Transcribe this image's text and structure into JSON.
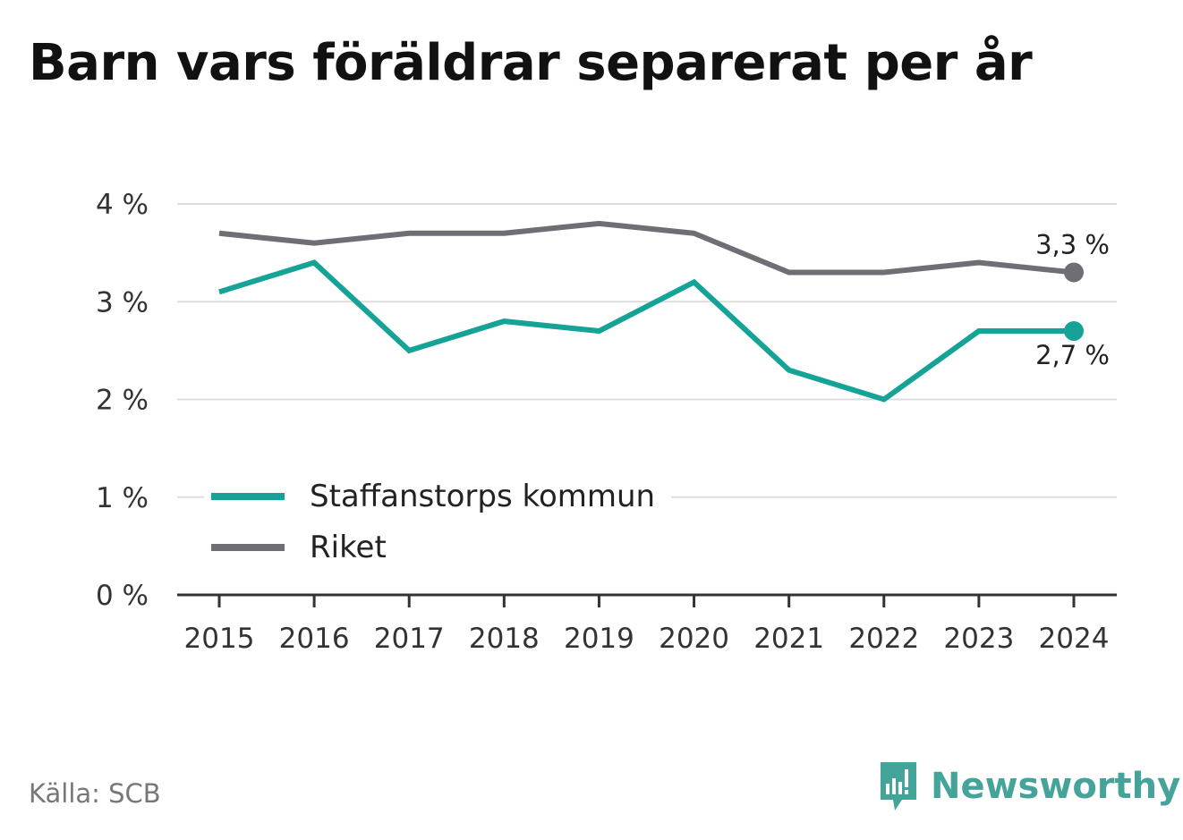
{
  "title": "Barn vars föräldrar separerat per år",
  "source": "Källa: SCB",
  "brand": {
    "name": "Newsworthy",
    "icon": "newsworthy-logo-icon",
    "color": "#45a49a"
  },
  "chart_data": {
    "type": "line",
    "title": "Barn vars föräldrar separerat per år",
    "x": [
      "2015",
      "2016",
      "2017",
      "2018",
      "2019",
      "2020",
      "2021",
      "2022",
      "2023",
      "2024"
    ],
    "yticks": [
      "0 %",
      "1 %",
      "2 %",
      "3 %",
      "4 %"
    ],
    "ylim": [
      0,
      4
    ],
    "grid": true,
    "legend_position": "bottom-left",
    "series": [
      {
        "name": "Staffanstorps kommun",
        "color": "#14a396",
        "values": [
          3.1,
          3.4,
          2.5,
          2.8,
          2.7,
          3.2,
          2.3,
          2.0,
          2.7,
          2.7
        ],
        "end_label": "2,7 %"
      },
      {
        "name": "Riket",
        "color": "#6e6e75",
        "values": [
          3.7,
          3.6,
          3.7,
          3.7,
          3.8,
          3.7,
          3.3,
          3.3,
          3.4,
          3.3
        ],
        "end_label": "3,3 %"
      }
    ]
  }
}
